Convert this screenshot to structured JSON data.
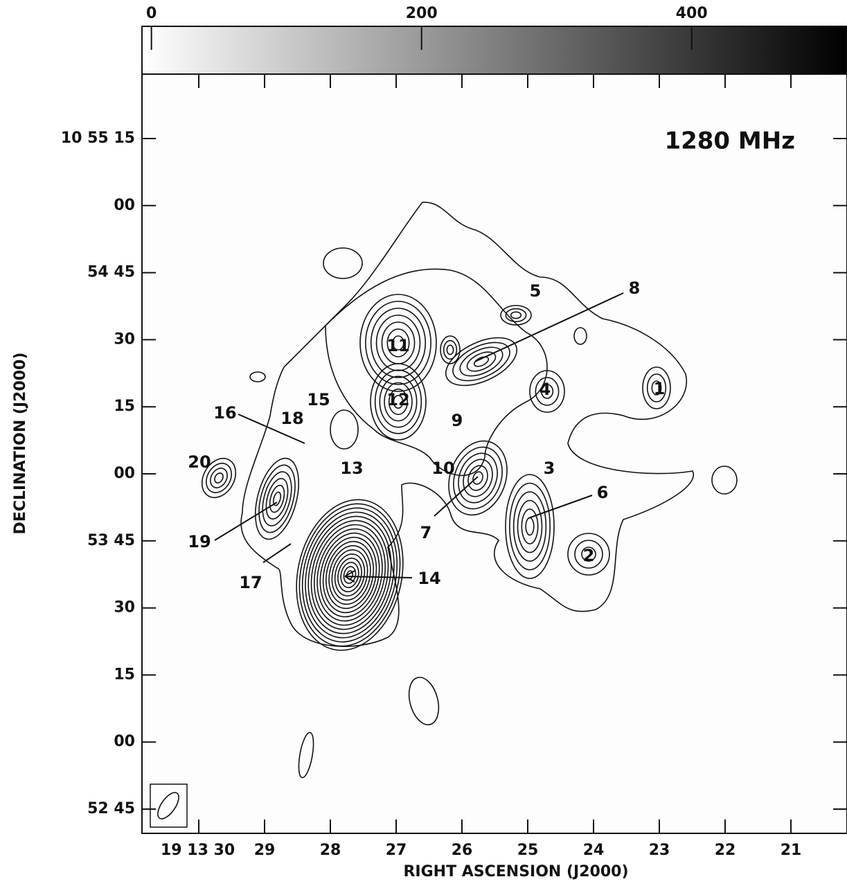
{
  "colorbar": {
    "lim": [
      -7,
      515
    ],
    "ticks": [
      0,
      200,
      400
    ]
  },
  "frequency": "1280 MHz",
  "x_axis": {
    "title": "RIGHT ASCENSION (J2000)",
    "ticks": [
      "19 13 30",
      "29",
      "28",
      "27",
      "26",
      "25",
      "24",
      "23",
      "22",
      "21"
    ]
  },
  "y_axis": {
    "title": "DECLINATION (J2000)",
    "ticks": [
      "10 55 15",
      "00",
      "54 45",
      "30",
      "15",
      "00",
      "53 45",
      "30",
      "15",
      "00",
      "52 45"
    ]
  },
  "sources": [
    "1",
    "2",
    "3",
    "4",
    "5",
    "6",
    "7",
    "8",
    "9",
    "10",
    "11",
    "12",
    "13",
    "14",
    "15",
    "16",
    "17",
    "18",
    "19",
    "20"
  ]
}
